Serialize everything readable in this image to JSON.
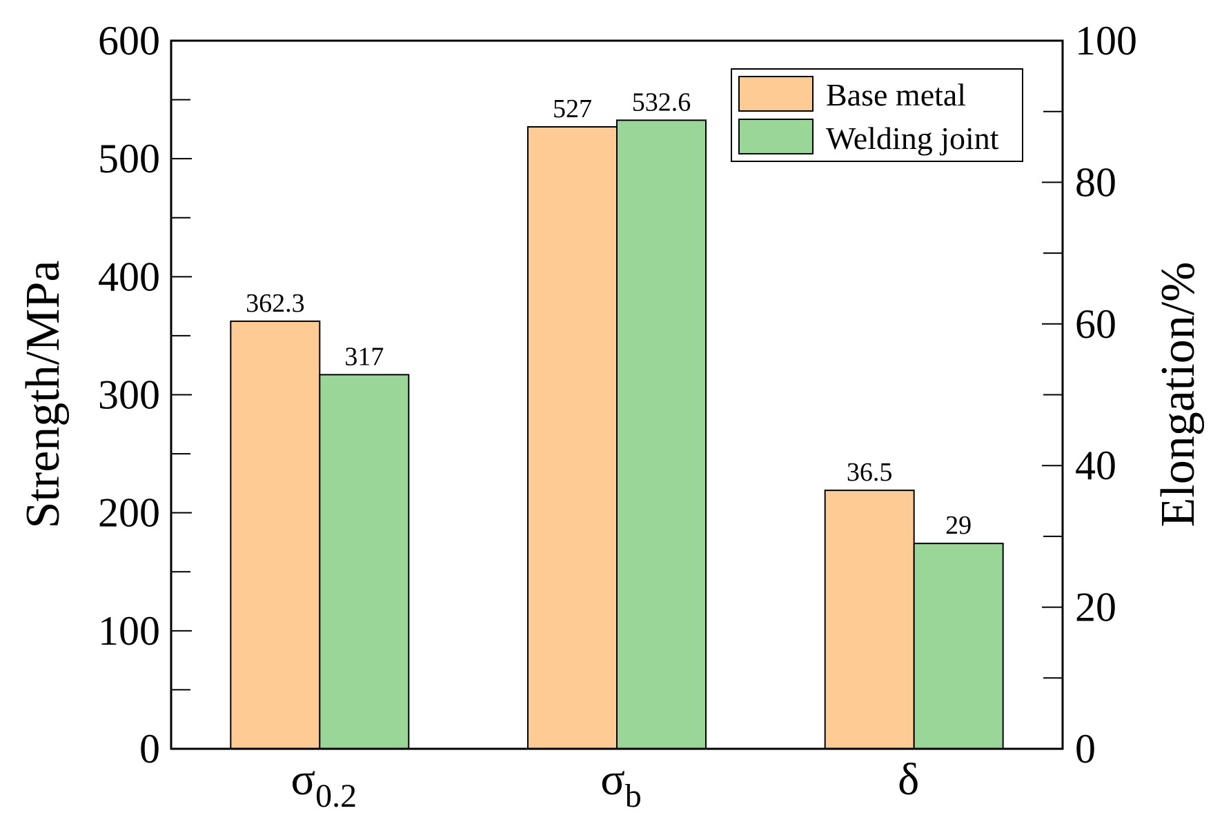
{
  "chart_data": {
    "type": "bar",
    "categories": [
      {
        "symbol": "σ",
        "subscript": "0.2",
        "axis": "left"
      },
      {
        "symbol": "σ",
        "subscript": "b",
        "axis": "left"
      },
      {
        "symbol": "δ",
        "subscript": "",
        "axis": "right"
      }
    ],
    "series": [
      {
        "name": "Base metal",
        "color": "#FDCB93",
        "values": [
          362.3,
          527,
          36.5
        ],
        "labels": [
          "362.3",
          "527",
          "36.5"
        ]
      },
      {
        "name": "Welding joint",
        "color": "#9BD699",
        "values": [
          317,
          532.6,
          29
        ],
        "labels": [
          "317",
          "532.6",
          "29"
        ]
      }
    ],
    "ylabel": "Strength/MPa",
    "ylim": [
      0,
      600
    ],
    "yticks": [
      0,
      100,
      200,
      300,
      400,
      500,
      600
    ],
    "y2label": "Elongation/%",
    "y2lim": [
      0,
      100
    ],
    "y2ticks": [
      0,
      20,
      40,
      60,
      80,
      100
    ],
    "legend_position": "top-right",
    "grid": false
  }
}
